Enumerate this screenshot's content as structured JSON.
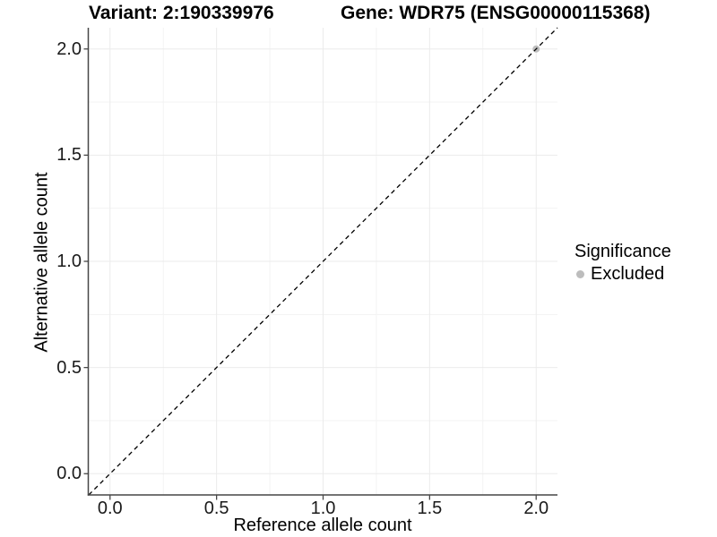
{
  "figure": {
    "title_left": "Variant: 2:190339976",
    "title_right": "Gene: WDR75 (ENSG00000115368)"
  },
  "chart_data": {
    "type": "scatter",
    "title_left": "Variant: 2:190339976",
    "title_right": "Gene: WDR75 (ENSG00000115368)",
    "xlabel": "Reference allele count",
    "ylabel": "Alternative allele count",
    "xlim": [
      -0.1,
      2.1
    ],
    "ylim": [
      -0.1,
      2.1
    ],
    "x_tick_values": [
      0,
      0.5,
      1,
      1.5,
      2
    ],
    "y_tick_values": [
      0,
      0.5,
      1,
      1.5,
      2
    ],
    "x_tick_labels": [
      "0.0",
      "0.5",
      "1.0",
      "1.5",
      "2.0"
    ],
    "y_tick_labels": [
      "0.0",
      "0.5",
      "1.0",
      "1.5",
      "2.0"
    ],
    "minor_tick_values": [
      0.25,
      0.75,
      1.25,
      1.75
    ],
    "grid": "major+minor",
    "axes_shown": [
      "left",
      "bottom"
    ],
    "points": [
      {
        "x": 2.0,
        "y": 2.0,
        "series": "Excluded"
      }
    ],
    "reference_line": {
      "kind": "identity y=x",
      "from": [
        -0.1,
        -0.1
      ],
      "to": [
        2.1,
        2.1
      ],
      "style": "dashed",
      "color": "#000000"
    },
    "legend": {
      "title": "Significance",
      "position": "right",
      "entries": [
        {
          "label": "Excluded",
          "color": "#bdbdbd"
        }
      ]
    },
    "colors": {
      "point": "#bdbdbd",
      "grid_major": "#ebebeb",
      "grid_minor": "#f3f3f3",
      "axis": "#474747",
      "tick_label": "#1a1a1a",
      "background": "#ffffff"
    }
  }
}
